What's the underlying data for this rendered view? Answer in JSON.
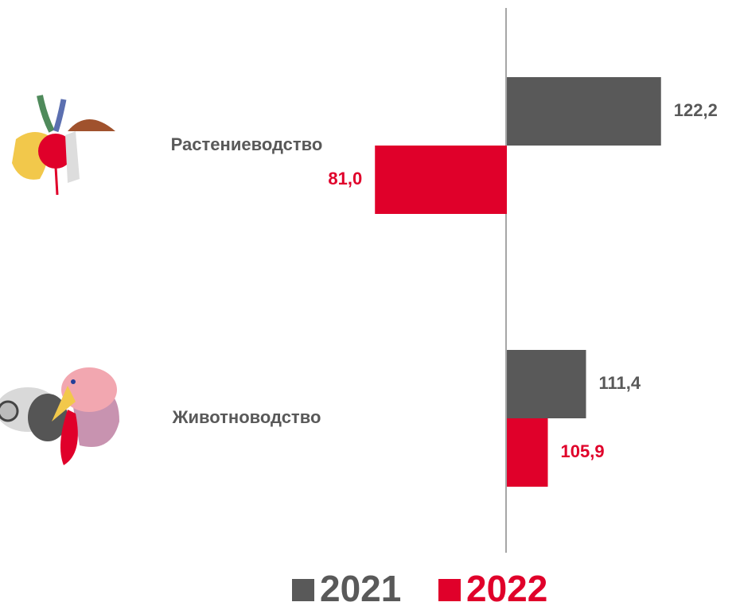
{
  "chart_data": {
    "type": "bar",
    "orientation": "horizontal",
    "base": 100,
    "categories": [
      "Растениеводство",
      "Животноводство"
    ],
    "series": [
      {
        "name": "2021",
        "color": "#595959",
        "values": [
          122.2,
          111.4
        ],
        "value_labels": [
          "122,2",
          "111,4"
        ]
      },
      {
        "name": "2022",
        "color": "#e0002a",
        "values": [
          81.0,
          105.9
        ],
        "value_labels": [
          "81,0",
          "105,9"
        ]
      }
    ],
    "xlim": [
      27,
      133
    ],
    "legend": "bottom"
  }
}
